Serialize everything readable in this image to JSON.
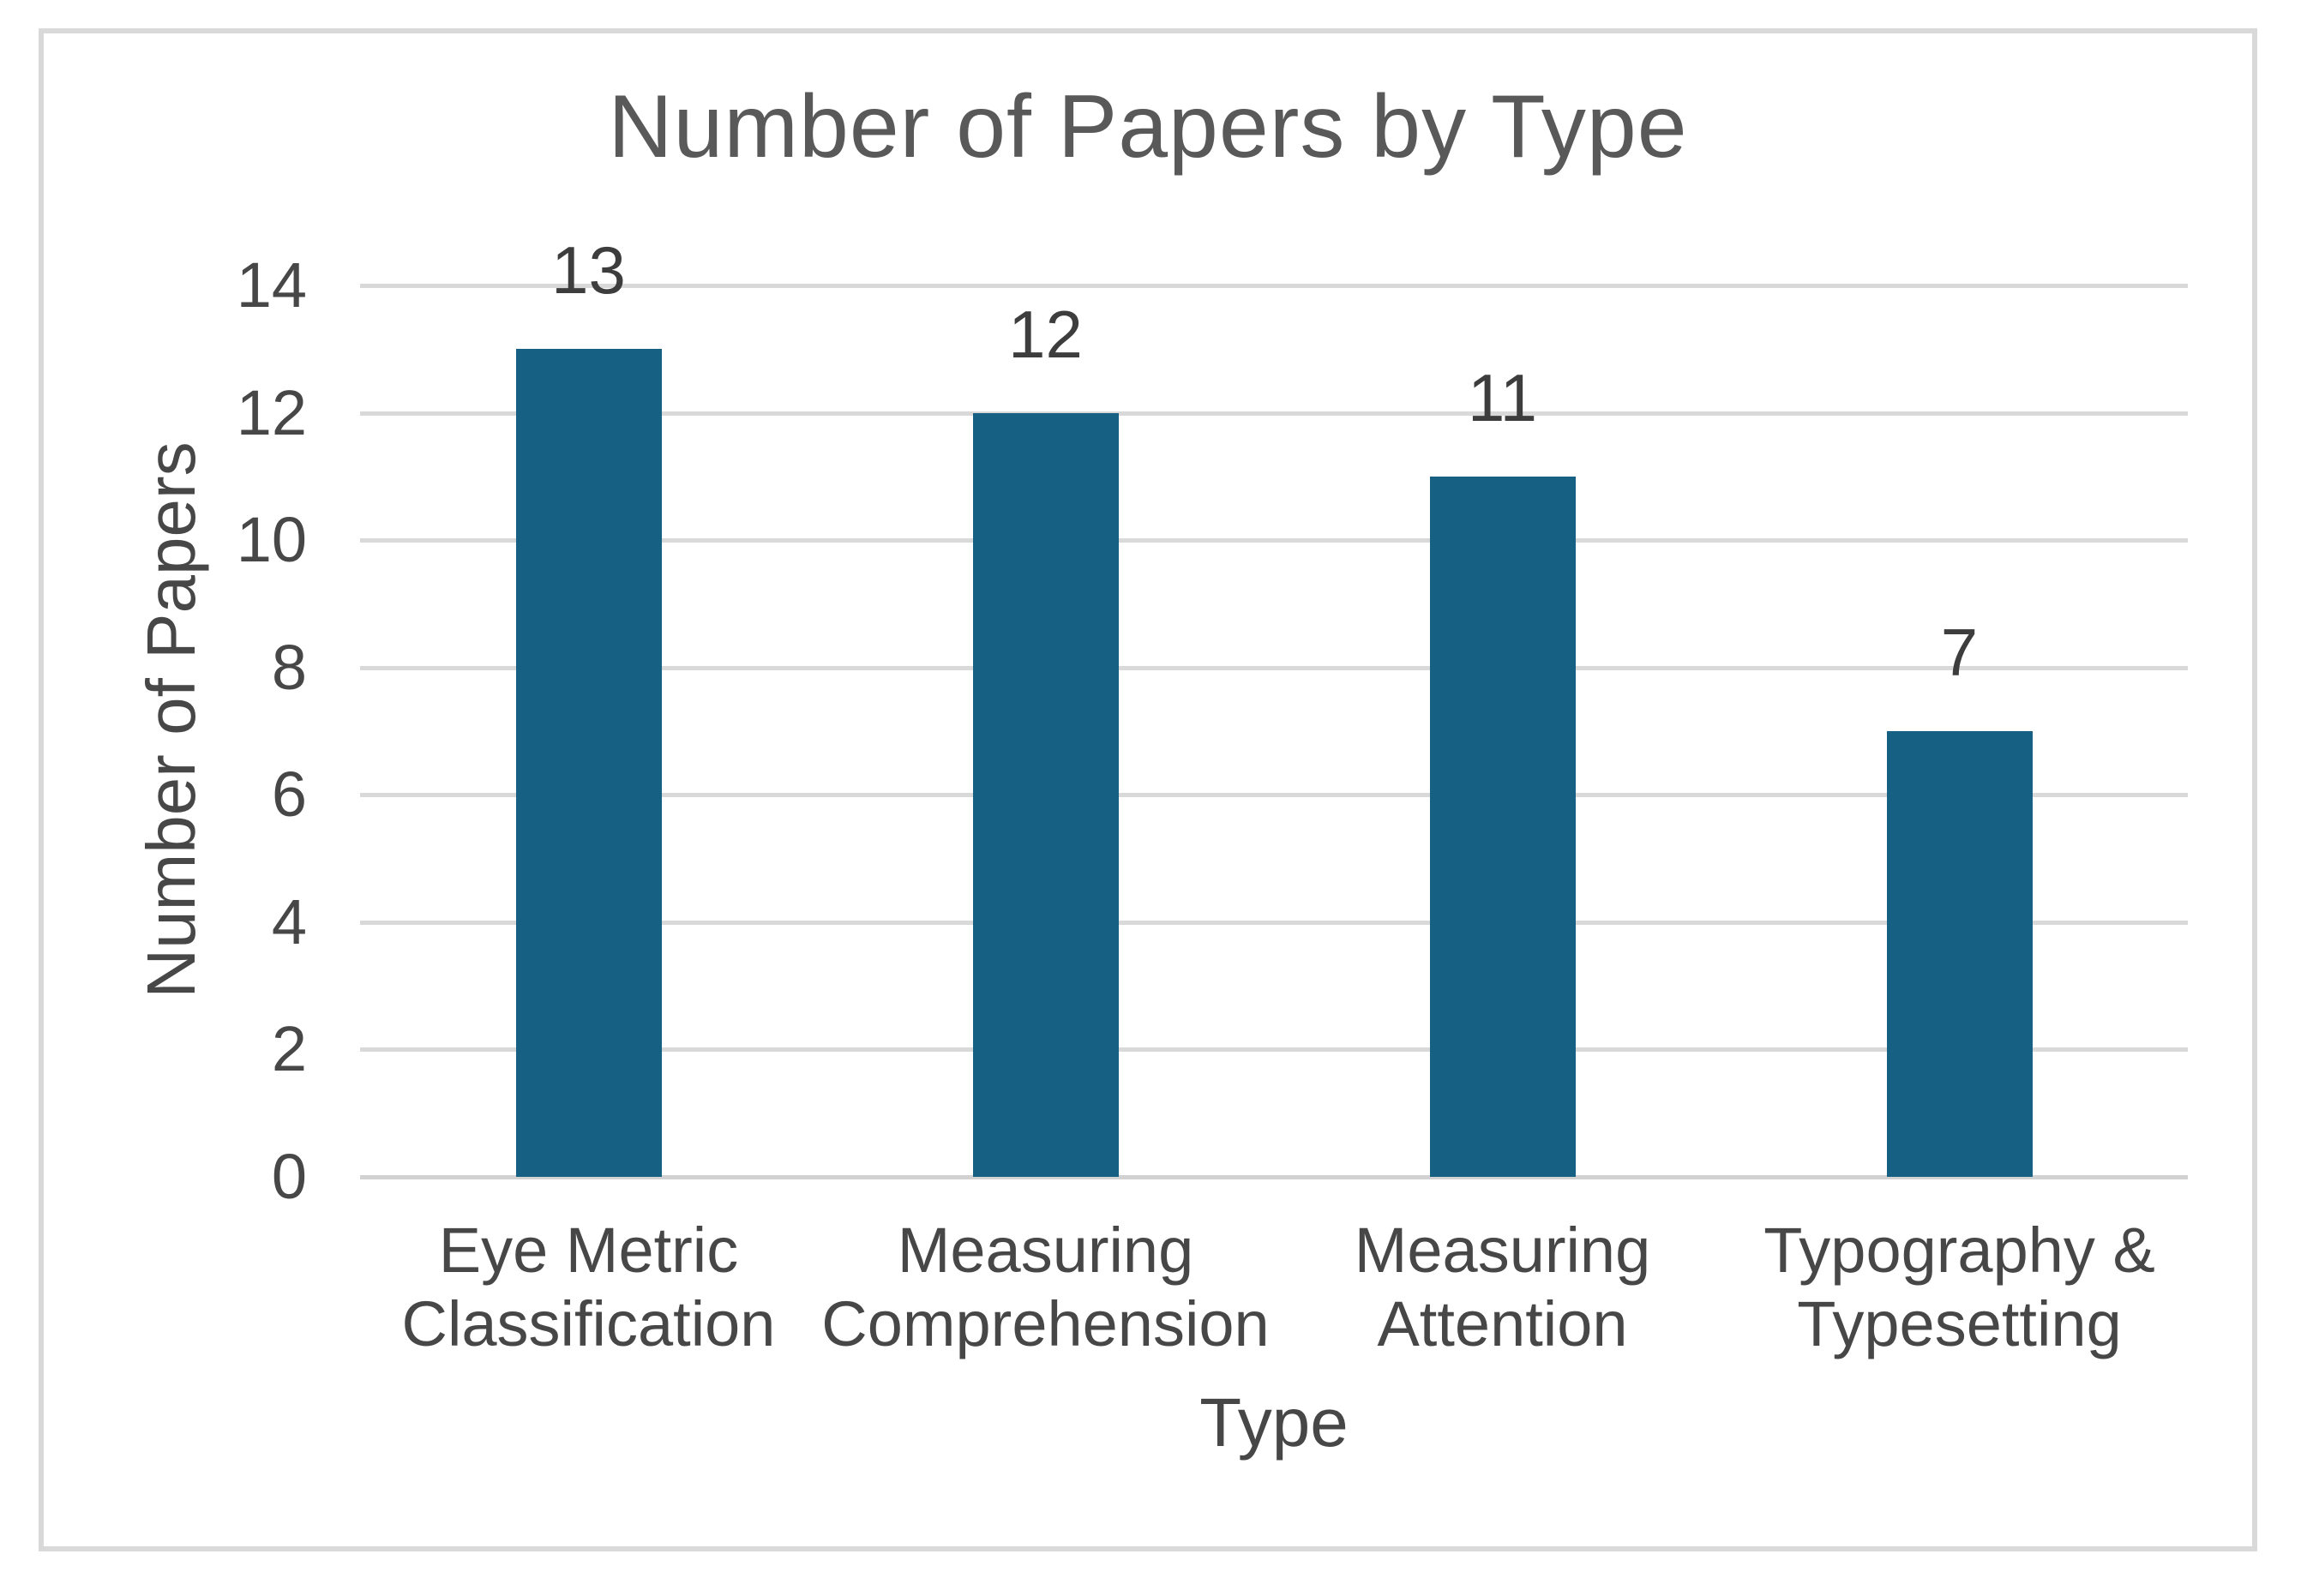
{
  "chart_data": {
    "type": "bar",
    "title": "Number of Papers by Type",
    "xlabel": "Type",
    "ylabel": "Number of Papers",
    "categories": [
      "Eye Metric Classification",
      "Measuring Comprehension",
      "Measuring Attention",
      "Typography & Typesetting"
    ],
    "values": [
      13,
      12,
      11,
      7
    ],
    "data_labels": [
      "13",
      "12",
      "11",
      "7"
    ],
    "yticks": [
      0,
      2,
      4,
      6,
      8,
      10,
      12,
      14
    ],
    "ylim": [
      0,
      14
    ],
    "grid": true,
    "legend_position": "none",
    "bar_color": "#166083",
    "gridline_color": "#d9d9d9",
    "text_color": "#474747",
    "frame_border_color": "#d9d9d9",
    "background_color": "#ffffff"
  }
}
